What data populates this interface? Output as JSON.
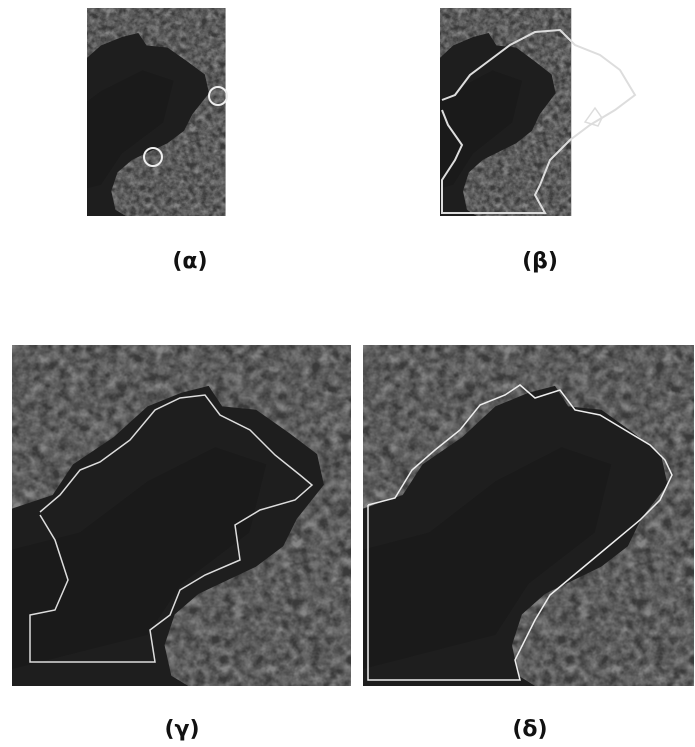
{
  "panels": [
    {
      "label": "(α)"
    },
    {
      "label": "(β)"
    },
    {
      "label": "(γ)"
    },
    {
      "label": "(δ)"
    }
  ]
}
